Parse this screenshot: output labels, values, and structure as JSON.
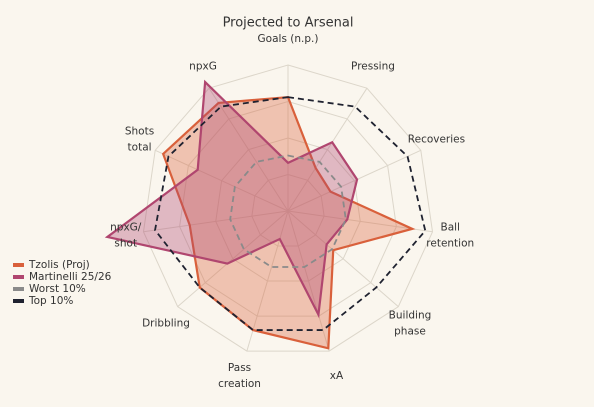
{
  "chart_data": {
    "type": "radar",
    "title": "Projected to Arsenal",
    "categories": [
      "Goals (n.p.)",
      "Pressing",
      "Recoveries",
      "Ball\nretention",
      "Building\nphase",
      "xA",
      "Pass\ncreation",
      "Dribbling",
      "npxG/\nshot",
      "Shots\ntotal",
      "npxG"
    ],
    "ylim": [
      0,
      100
    ],
    "series": [
      {
        "name": "Tzolis (Proj)",
        "color": "#d9603b",
        "fill": true,
        "values": [
          78,
          35,
          32,
          86,
          41,
          98,
          85,
          80,
          68,
          94,
          88
        ]
      },
      {
        "name": "Martinelli 25/26",
        "color": "#b0466f",
        "fill": true,
        "values": [
          33,
          56,
          52,
          41,
          35,
          74,
          20,
          55,
          125,
          68,
          105
        ]
      },
      {
        "name": "Worst 10%",
        "color": "#8a8a8a",
        "dashed": true,
        "values": [
          38,
          40,
          40,
          40,
          40,
          40,
          40,
          40,
          40,
          40,
          40
        ]
      },
      {
        "name": "Top 10%",
        "color": "#1f2230",
        "dashed": true,
        "values": [
          78,
          85,
          90,
          95,
          80,
          85,
          85,
          80,
          92,
          90,
          85
        ]
      }
    ],
    "legend": "left"
  }
}
